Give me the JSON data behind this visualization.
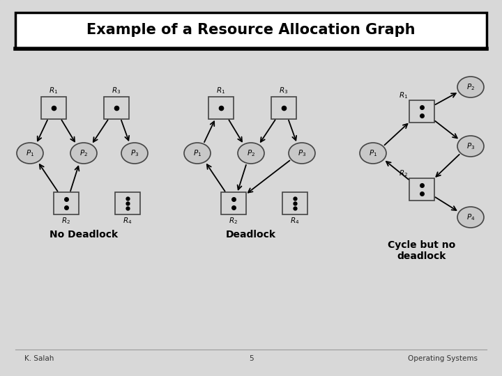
{
  "title": "Example of a Resource Allocation Graph",
  "footer_left": "K. Salah",
  "footer_center": "5",
  "footer_right": "Operating Systems",
  "label1": "No Deadlock",
  "label2": "Deadlock",
  "label3": "Cycle but no\ndeadlock",
  "bg_color": "#d4d4d4",
  "node_fill": "#c8c8c8",
  "process_fill": "#b8b8b8",
  "title_fill": "#ffffff",
  "resource_fill": "#d8d8d8"
}
